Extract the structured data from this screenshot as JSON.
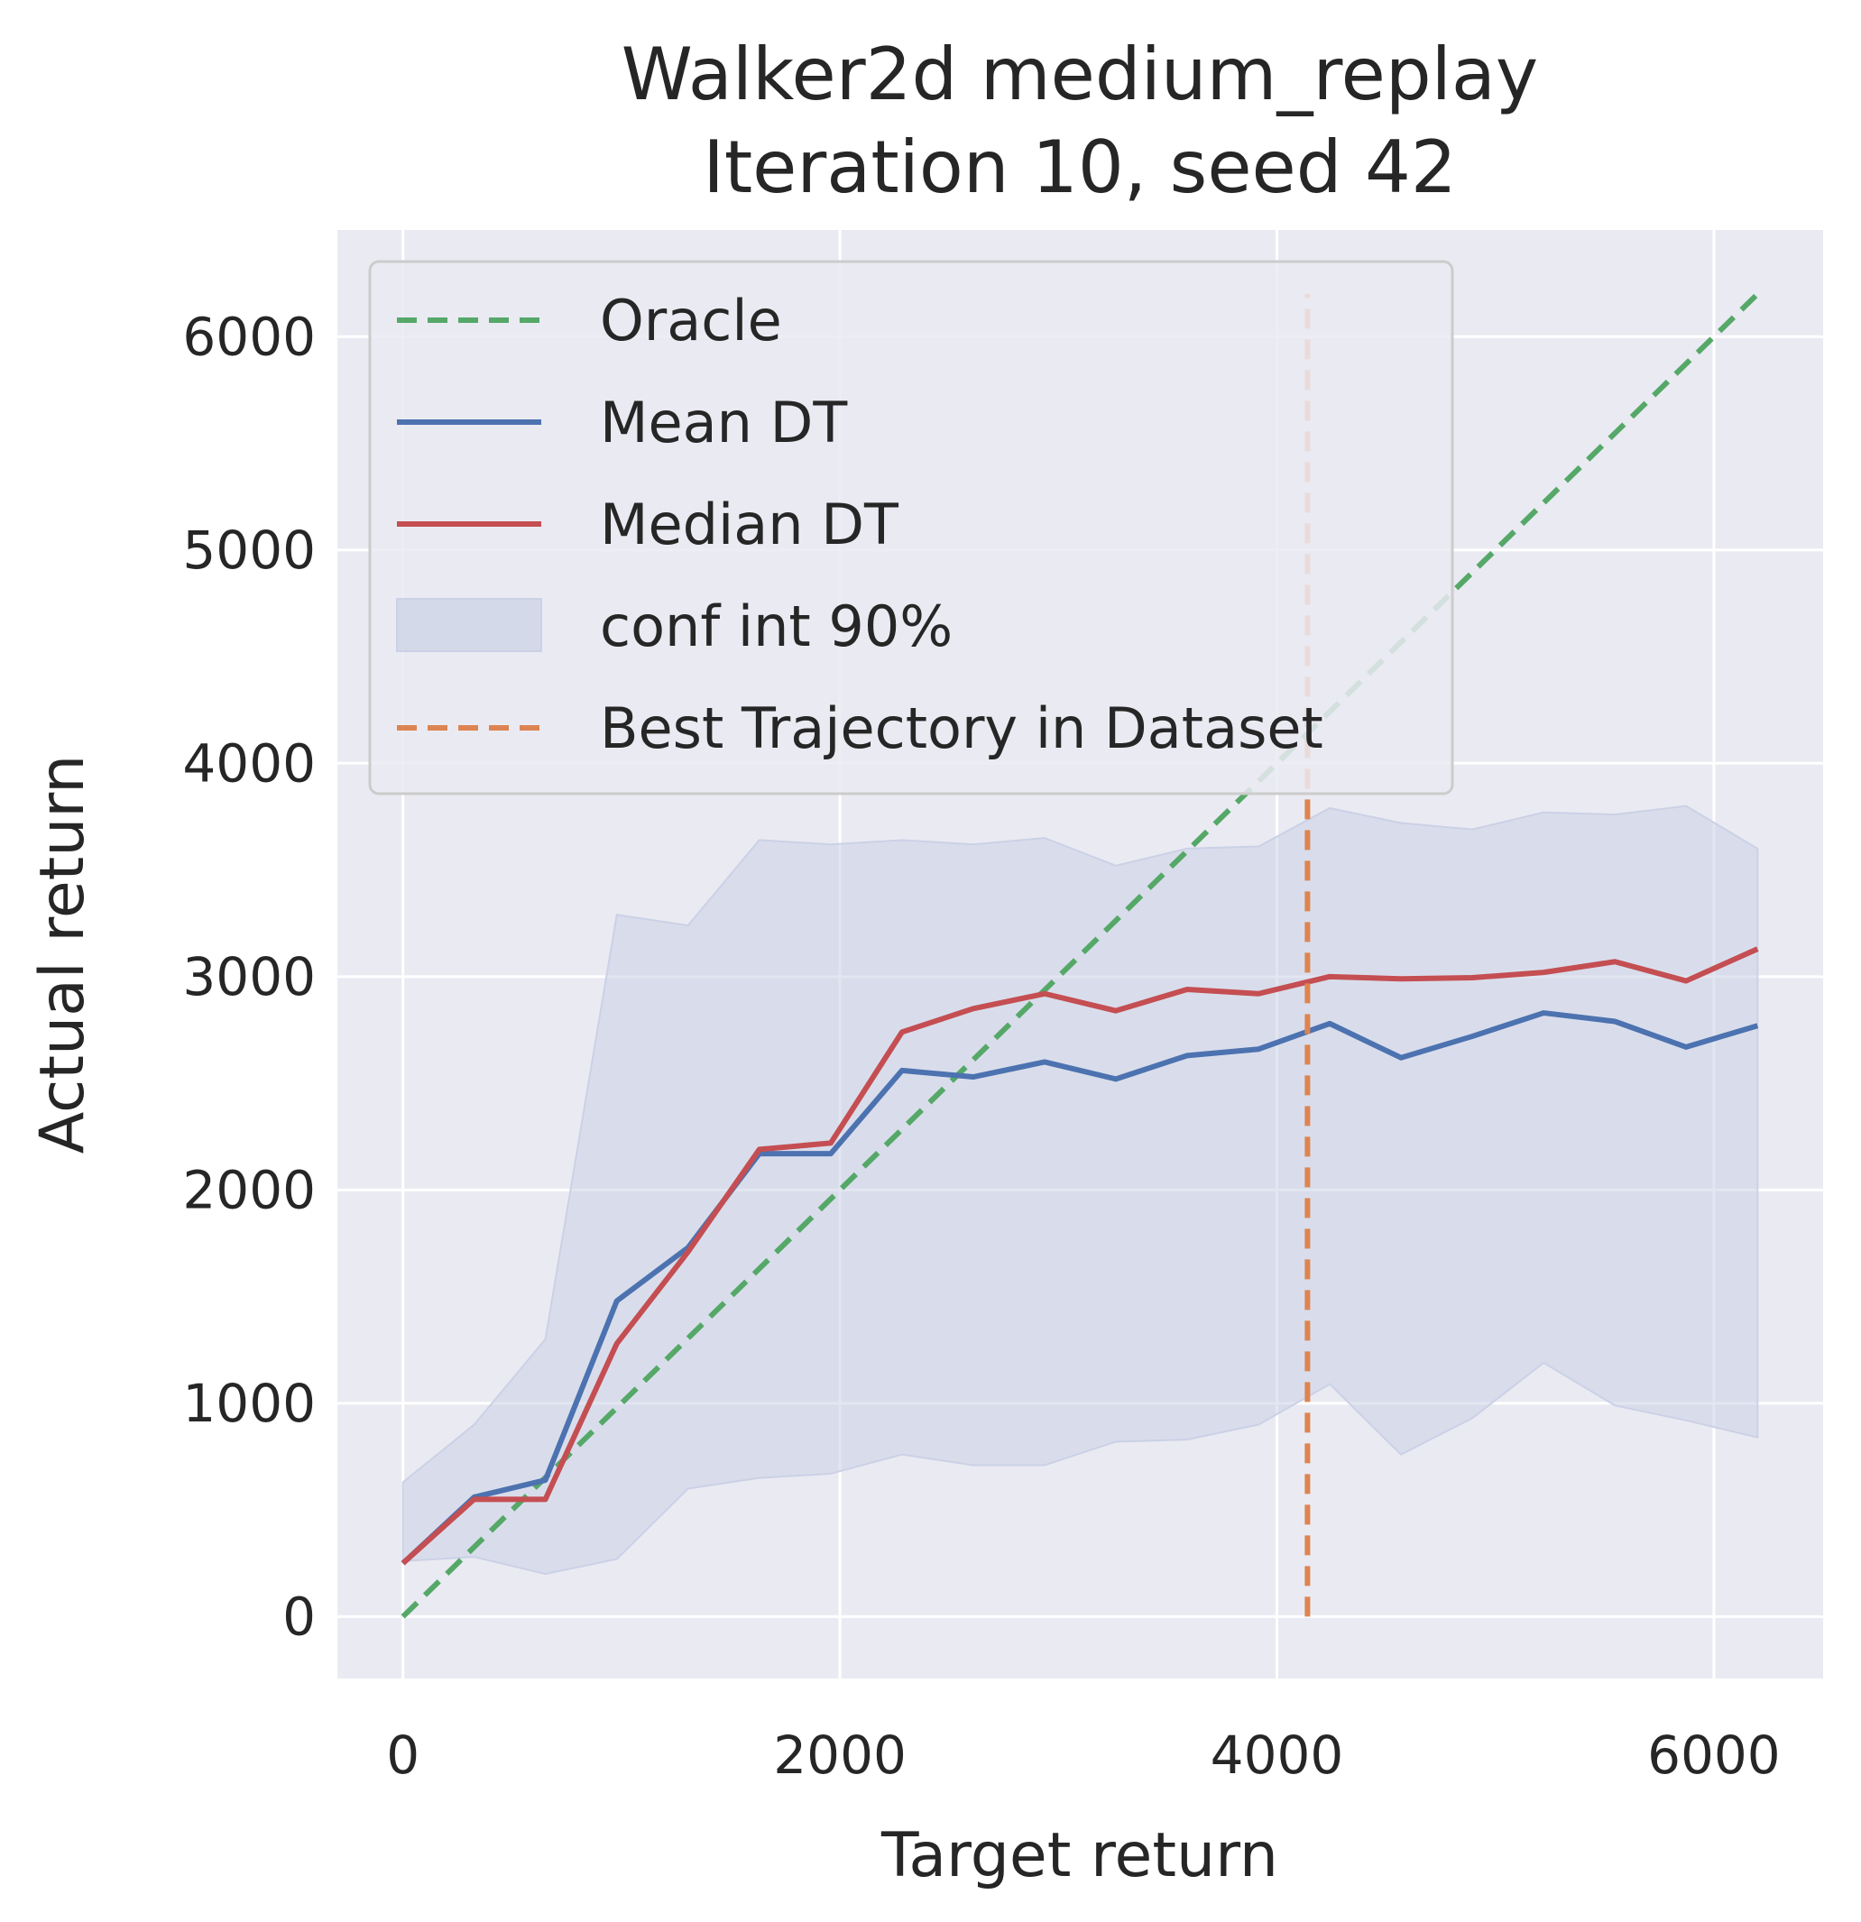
{
  "chart_data": {
    "type": "line",
    "title": [
      "Walker2d medium_replay",
      "Iteration 10, seed 42"
    ],
    "xlabel": "Target return",
    "ylabel": "Actual return",
    "xlim": [
      -300,
      6500
    ],
    "ylim": [
      -290,
      6500
    ],
    "xticks": [
      0,
      2000,
      4000,
      6000
    ],
    "yticks": [
      0,
      1000,
      2000,
      3000,
      4000,
      5000,
      6000
    ],
    "xtick_labels": [
      "0",
      "2000",
      "4000",
      "6000"
    ],
    "ytick_labels": [
      "0",
      "1000",
      "2000",
      "3000",
      "4000",
      "5000",
      "6000"
    ],
    "grid": true,
    "legend_position": "upper-left",
    "colors": {
      "background": "#eaeaf2",
      "grid": "#ffffff",
      "oracle": "#55a868",
      "mean": "#4c72b0",
      "median": "#c44e52",
      "conf_fill": "#cbd1e6",
      "best": "#dd8452"
    },
    "x": [
      0,
      326,
      652,
      979,
      1305,
      1631,
      1958,
      2284,
      2610,
      2937,
      3263,
      3589,
      3916,
      4242,
      4568,
      4894,
      5221,
      5547,
      5873,
      6200
    ],
    "series": [
      {
        "name": "Oracle",
        "style": "dashed",
        "points": [
          [
            0,
            0
          ],
          [
            6200,
            6200
          ]
        ]
      },
      {
        "name": "Mean DT",
        "style": "solid",
        "values": [
          250,
          560,
          640,
          1480,
          1730,
          2170,
          2170,
          2560,
          2530,
          2600,
          2520,
          2630,
          2660,
          2780,
          2620,
          2720,
          2830,
          2790,
          2670,
          2770
        ]
      },
      {
        "name": "Median DT",
        "style": "solid",
        "values": [
          250,
          550,
          550,
          1280,
          1710,
          2190,
          2220,
          2740,
          2850,
          2920,
          2840,
          2940,
          2920,
          3000,
          2990,
          2995,
          3020,
          3070,
          2980,
          3130
        ]
      },
      {
        "name": "conf int 90%",
        "style": "fill",
        "upper": [
          630,
          900,
          1300,
          3290,
          3240,
          3640,
          3620,
          3640,
          3620,
          3650,
          3520,
          3600,
          3610,
          3790,
          3720,
          3690,
          3770,
          3760,
          3800,
          3600
        ],
        "lower": [
          260,
          280,
          200,
          270,
          600,
          650,
          670,
          760,
          710,
          710,
          820,
          830,
          900,
          1090,
          760,
          930,
          1190,
          990,
          920,
          840
        ]
      },
      {
        "name": "Best Trajectory in Dataset",
        "style": "dashed-vertical",
        "x_value": 4140,
        "y_range": [
          0,
          6200
        ]
      }
    ]
  }
}
